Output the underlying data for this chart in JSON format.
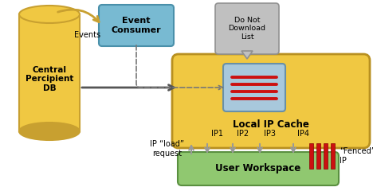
{
  "colors": {
    "yellow": "#F0C842",
    "yellow_dark": "#C8A030",
    "yellow_edge": "#B89020",
    "blue_box": "#78BAD2",
    "blue_edge": "#4A90AA",
    "green_box": "#90C870",
    "green_edge": "#5A9040",
    "gray_box": "#C0C0C0",
    "gray_edge": "#909090",
    "list_bg": "#A8C8DC",
    "list_edge": "#6890A8",
    "red_bar": "#CC1010",
    "red_bar_edge": "#880000",
    "arrow_dark": "#555555",
    "arrow_gray": "#999999",
    "dashed": "#777777",
    "white": "#FFFFFF"
  },
  "labels": {
    "central_db": "Central\nPercipient\nDB",
    "event_consumer": "Event\nConsumer",
    "local_ip_cache": "Local IP Cache",
    "user_workspace": "User Workspace",
    "do_not_download": "Do Not\nDownload\nList",
    "events": "Events",
    "ip_load": "IP “load”\nrequest",
    "ip1": "IP1",
    "ip2": "IP2",
    "ip3": "IP3",
    "ip4": "IP4",
    "fenced_ip": "“Fenced”\nIP"
  }
}
